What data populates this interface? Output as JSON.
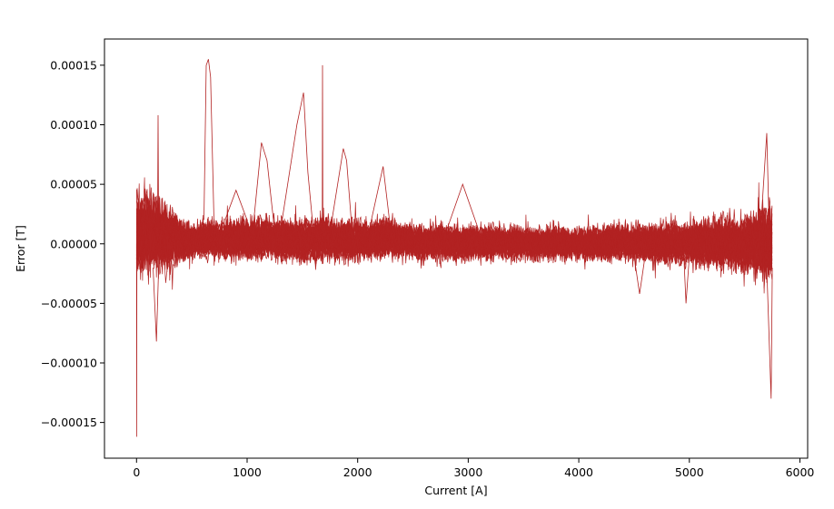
{
  "chart_data": {
    "type": "line",
    "title": "",
    "xlabel": "Current [A]",
    "ylabel": "Error [T]",
    "xlim": [
      -290,
      6070
    ],
    "ylim": [
      -0.00018,
      0.000172
    ],
    "xticks": [
      0,
      1000,
      2000,
      3000,
      4000,
      5000,
      6000
    ],
    "xtick_labels": [
      "0",
      "1000",
      "2000",
      "3000",
      "4000",
      "5000",
      "6000"
    ],
    "yticks": [
      -0.00015,
      -0.0001,
      -5e-05,
      0.0,
      5e-05,
      0.0001,
      0.00015
    ],
    "ytick_labels": [
      "−0.00015",
      "−0.00010",
      "−0.00005",
      "0.00000",
      "0.00005",
      "0.00010",
      "0.00015"
    ],
    "grid": false,
    "legend": "none",
    "line_color": "#b22222",
    "series_count_estimate": 40,
    "noise_band": {
      "x": [
        0,
        200,
        500,
        1000,
        2000,
        3000,
        4000,
        5000,
        5500,
        5750
      ],
      "upper": [
        4e-05,
        3e-05,
        1.5e-05,
        1.8e-05,
        1.8e-05,
        1.2e-05,
        1.2e-05,
        1.5e-05,
        2e-05,
        3e-05
      ],
      "lower": [
        -2.5e-05,
        -2.5e-05,
        -1e-05,
        -1.2e-05,
        -1.2e-05,
        -1.2e-05,
        -1.2e-05,
        -1.5e-05,
        -2e-05,
        -3e-05
      ]
    },
    "peaks": [
      {
        "x": [
          610,
          630,
          650,
          670,
          700
        ],
        "y": [
          2e-05,
          0.00015,
          0.000155,
          0.00014,
          2e-05
        ]
      },
      {
        "x": [
          1050,
          1130,
          1180,
          1250
        ],
        "y": [
          1e-05,
          8.5e-05,
          7e-05,
          1e-05
        ]
      },
      {
        "x": [
          1300,
          1450,
          1510,
          1550,
          1600
        ],
        "y": [
          1e-05,
          0.0001,
          0.000127,
          6e-05,
          1e-05
        ]
      },
      {
        "x": [
          1750,
          1870,
          1900,
          1950
        ],
        "y": [
          1e-05,
          8e-05,
          7e-05,
          1e-05
        ]
      },
      {
        "x": [
          2100,
          2230,
          2300
        ],
        "y": [
          1e-05,
          6.5e-05,
          1e-05
        ]
      },
      {
        "x": [
          800,
          900,
          1000
        ],
        "y": [
          2e-05,
          4.5e-05,
          2e-05
        ]
      },
      {
        "x": [
          2800,
          2950,
          3100
        ],
        "y": [
          1e-05,
          5e-05,
          1e-05
        ]
      },
      {
        "x": [
          1680,
          1682,
          1685
        ],
        "y": [
          1e-05,
          0.00015,
          1e-05
        ]
      },
      {
        "x": [
          190,
          195,
          200
        ],
        "y": [
          1e-05,
          0.000108,
          1e-05
        ]
      },
      {
        "x": [
          5650,
          5700,
          5720
        ],
        "y": [
          2e-05,
          9.3e-05,
          2e-05
        ]
      },
      {
        "x": [
          5700,
          5740,
          5750
        ],
        "y": [
          -2e-05,
          -0.00013,
          -2e-05
        ]
      },
      {
        "x": [
          0,
          1,
          3
        ],
        "y": [
          0.0,
          -0.000162,
          0.0
        ]
      },
      {
        "x": [
          150,
          180,
          200
        ],
        "y": [
          -2e-05,
          -8.2e-05,
          -2e-05
        ]
      },
      {
        "x": [
          4500,
          4550,
          4600
        ],
        "y": [
          -1e-05,
          -4.2e-05,
          -1e-05
        ]
      },
      {
        "x": [
          4950,
          4970,
          5000
        ],
        "y": [
          -1e-05,
          -5e-05,
          -1e-05
        ]
      }
    ]
  }
}
